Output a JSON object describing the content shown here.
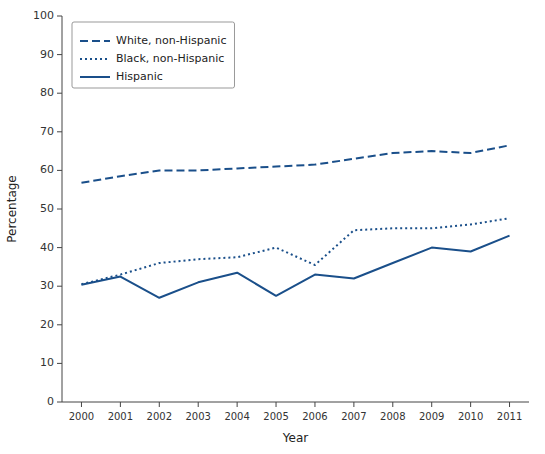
{
  "chart_data": {
    "type": "line",
    "x": [
      2000,
      2001,
      2002,
      2003,
      2004,
      2005,
      2006,
      2007,
      2008,
      2009,
      2010,
      2011
    ],
    "series": [
      {
        "name": "White, non-Hispanic",
        "color": "#1a4f8a",
        "line_style": "dashed",
        "values": [
          56.8,
          58.5,
          60.0,
          60.0,
          60.5,
          61.0,
          61.5,
          63.0,
          64.5,
          65.0,
          64.5,
          66.5
        ]
      },
      {
        "name": "Black, non-Hispanic",
        "color": "#1a4f8a",
        "line_style": "dotted",
        "values": [
          30.5,
          33.0,
          36.0,
          37.0,
          37.5,
          40.0,
          35.5,
          44.5,
          45.0,
          45.0,
          46.0,
          47.6
        ]
      },
      {
        "name": "Hispanic",
        "color": "#1a4f8a",
        "line_style": "solid",
        "values": [
          30.4,
          32.5,
          27.0,
          31.0,
          33.5,
          27.5,
          33.0,
          32.0,
          36.0,
          40.0,
          39.0,
          43.1
        ]
      }
    ],
    "xlabel": "Year",
    "ylabel": "Percentage",
    "xlim": [
      1999.5,
      2011.5
    ],
    "xticks": [
      2000,
      2001,
      2002,
      2003,
      2004,
      2005,
      2006,
      2007,
      2008,
      2009,
      2010,
      2011
    ],
    "ylim": [
      0,
      100
    ],
    "yticks": [
      0,
      10,
      20,
      30,
      40,
      50,
      60,
      70,
      80,
      90,
      100
    ],
    "grid": false,
    "legend": "upper left"
  }
}
